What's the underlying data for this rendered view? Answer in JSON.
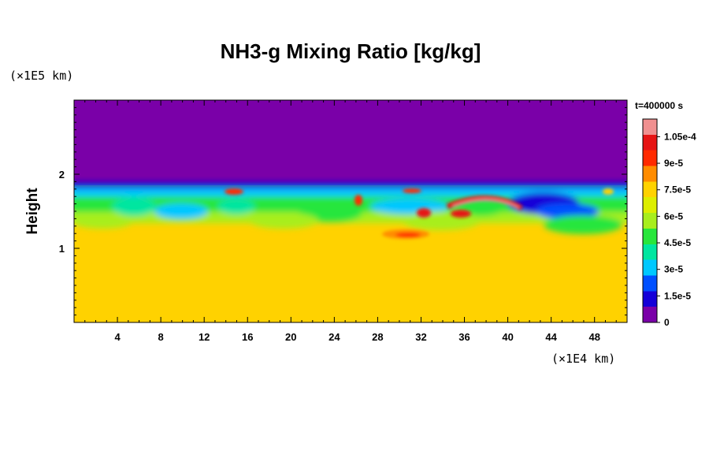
{
  "chart_data": {
    "type": "heatmap",
    "title": "NH3-g Mixing Ratio [kg/kg]",
    "ylabel": "Height",
    "x_unit": "(×1E4 km)",
    "y_unit": "(×1E5 km)",
    "time_label": "t=400000 s",
    "xlim": [
      0,
      51
    ],
    "ylim": [
      0,
      3
    ],
    "x_ticks": [
      4,
      8,
      12,
      16,
      20,
      24,
      28,
      32,
      36,
      40,
      44,
      48
    ],
    "x_tick_labels": [
      "4",
      "8",
      "12",
      "16",
      "20",
      "24",
      "28",
      "32",
      "36",
      "40",
      "44",
      "48"
    ],
    "y_ticks": [
      1,
      2
    ],
    "y_tick_labels": [
      "1",
      "2"
    ],
    "colorbar": {
      "min": 0,
      "max": 0.000115,
      "labels": [
        "0",
        "1.5e-5",
        "3e-5",
        "4.5e-5",
        "6e-5",
        "7.5e-5",
        "9e-5",
        "1.05e-4"
      ],
      "values": [
        0,
        1.5e-05,
        3e-05,
        4.5e-05,
        6e-05,
        7.5e-05,
        9e-05,
        0.000105
      ],
      "colors": [
        "#7a00a8",
        "#1400d8",
        "#0050ff",
        "#00c8ff",
        "#00e6a0",
        "#28e63c",
        "#a8ee1e",
        "#ddee00",
        "#ffd200",
        "#ff8c00",
        "#ff2a00",
        "#e61414",
        "#f09090"
      ]
    },
    "background_value": 7.7e-05,
    "top_value": 0,
    "interface_height": 1.85
  }
}
